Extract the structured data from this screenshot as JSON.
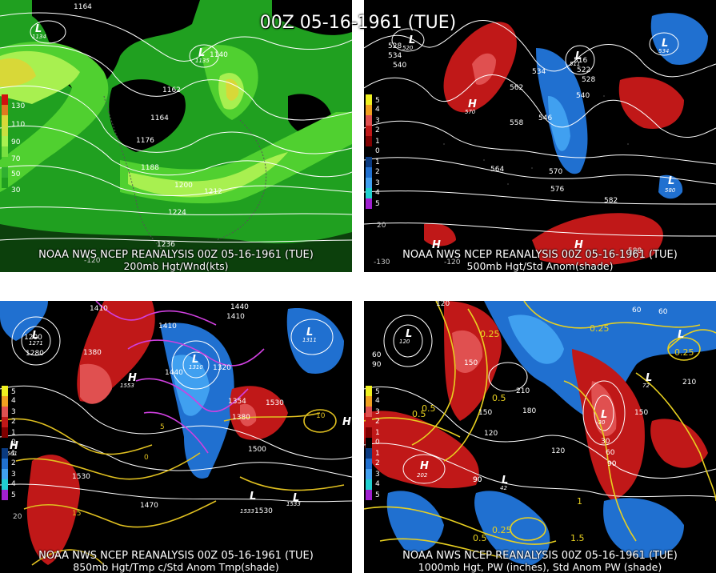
{
  "title": "00Z 05-16-1961 (TUE)",
  "panels": [
    {
      "id": "p1",
      "line1": "NOAA NWS NCEP REANALYSIS 00Z 05-16-1961 (TUE)",
      "line2": "200mb Hgt/Wnd(kts)",
      "legend": [
        "130",
        "110",
        "90",
        "70",
        "50",
        "30"
      ],
      "legend_colors": [
        "#d01010",
        "#e07a20",
        "#d8d838",
        "#a8f050",
        "#50d030",
        "#20a020"
      ],
      "contours": [
        "1164",
        "1140",
        "1162",
        "1164",
        "1176",
        "1188",
        "1200",
        "1212",
        "1224",
        "1236"
      ],
      "centers": [
        {
          "type": "L",
          "value": "1134"
        },
        {
          "type": "L",
          "value": "1135"
        }
      ],
      "lon_labels": [
        "-120"
      ]
    },
    {
      "id": "p2",
      "line1": "NOAA NWS NCEP REANALYSIS 00Z 05-16-1961 (TUE)",
      "line2": "500mb Hgt/Std Anom(shade)",
      "legend": [
        "5",
        "4",
        "3",
        "2",
        "1",
        "0",
        "1",
        "2",
        "3",
        "4",
        "5"
      ],
      "legend_colors": [
        "#f0f020",
        "#f0a020",
        "#e05050",
        "#c01818",
        "#800000",
        "#000000",
        "#0a3a80",
        "#2070d0",
        "#40a0f0",
        "#20d0d0",
        "#a020d0"
      ],
      "contours": [
        "528",
        "534",
        "540",
        "562",
        "534",
        "516",
        "522",
        "528",
        "540",
        "546",
        "558",
        "564",
        "570",
        "576",
        "582",
        "588"
      ],
      "centers": [
        {
          "type": "L",
          "value": "520"
        },
        {
          "type": "H",
          "value": "570"
        },
        {
          "type": "L",
          "value": "511"
        },
        {
          "type": "L",
          "value": "534"
        },
        {
          "type": "L",
          "value": "580"
        },
        {
          "type": "H",
          "value": ""
        },
        {
          "type": "H",
          "value": ""
        }
      ],
      "lon_labels": [
        "-130",
        "-120",
        "20"
      ]
    },
    {
      "id": "p3",
      "line1": "NOAA NWS NCEP REANALYSIS 00Z 05-16-1961 (TUE)",
      "line2": "850mb Hgt/Tmp c/Std Anom Tmp(shade)",
      "legend": [
        "5",
        "4",
        "3",
        "2",
        "1",
        "0",
        "1",
        "2",
        "3",
        "4",
        "5"
      ],
      "legend_colors": [
        "#f0f020",
        "#f0a020",
        "#e05050",
        "#c01818",
        "#800000",
        "#000000",
        "#0a3a80",
        "#2070d0",
        "#40a0f0",
        "#20d0d0",
        "#a020d0"
      ],
      "contours": [
        "1410",
        "1440",
        "1410",
        "1410",
        "1200",
        "1280",
        "1380",
        "1440",
        "1320",
        "1354",
        "1380",
        "1530",
        "1500",
        "1530",
        "1470",
        "1530",
        "10",
        "15",
        "5",
        "0"
      ],
      "centers": [
        {
          "type": "L",
          "value": "1271"
        },
        {
          "type": "L",
          "value": "1310"
        },
        {
          "type": "L",
          "value": "1311"
        },
        {
          "type": "H",
          "value": "1553"
        },
        {
          "type": "H",
          "value": "1561"
        },
        {
          "type": "H",
          "value": ""
        },
        {
          "type": "L",
          "value": "1533"
        },
        {
          "type": "L",
          "value": "1533"
        }
      ],
      "lon_labels": [
        "20"
      ]
    },
    {
      "id": "p4",
      "line1": "NOAA NWS NCEP REANALYSIS 00Z 05-16-1961 (TUE)",
      "line2": "1000mb Hgt, PW (inches), Std Anom PW (shade)",
      "legend": [
        "5",
        "4",
        "3",
        "2",
        "1",
        "0",
        "1",
        "2",
        "3",
        "4",
        "5"
      ],
      "legend_colors": [
        "#f0f020",
        "#f0a020",
        "#e05050",
        "#c01818",
        "#800000",
        "#000000",
        "#0a3a80",
        "#2070d0",
        "#40a0f0",
        "#20d0d0",
        "#a020d0"
      ],
      "contours": [
        "120",
        "0.25",
        "60",
        "90",
        "150",
        "0.5",
        "210",
        "180",
        "150",
        "120",
        "0.5",
        "90",
        "0.25",
        "0.5",
        "1",
        "1.5",
        "0.25",
        "60",
        "30",
        "60",
        "150",
        "60",
        "90",
        "120",
        "90",
        "0.25",
        "0.5",
        "210"
      ],
      "centers": [
        {
          "type": "L",
          "value": "120"
        },
        {
          "type": "H",
          "value": "202"
        },
        {
          "type": "L",
          "value": "42"
        },
        {
          "type": "L",
          "value": "-30"
        },
        {
          "type": "L",
          "value": "72"
        },
        {
          "type": "L",
          "value": ""
        }
      ],
      "lon_labels": []
    }
  ]
}
